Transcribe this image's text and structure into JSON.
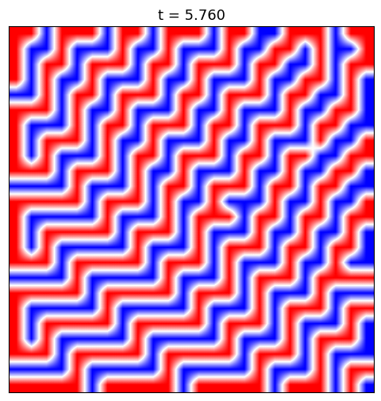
{
  "chart_data": {
    "type": "heatmap",
    "title": "t = 5.760",
    "color": "bwr",
    "tick_labels": false,
    "cells": [
      [
        1,
        1,
        -1,
        1,
        1,
        1,
        -1,
        1,
        1,
        -1,
        1,
        1,
        1,
        -1,
        1,
        1,
        -1,
        -1,
        1,
        1,
        1,
        -1,
        1,
        1
      ],
      [
        1,
        -1,
        -1,
        1,
        -1,
        -1,
        -1,
        1,
        -1,
        -1,
        1,
        -1,
        -1,
        -1,
        1,
        -1,
        -1,
        1,
        1,
        -1,
        1,
        -1,
        -1,
        1
      ],
      [
        1,
        -1,
        1,
        1,
        -1,
        1,
        1,
        1,
        -1,
        1,
        1,
        -1,
        1,
        1,
        1,
        -1,
        1,
        1,
        -1,
        -1,
        1,
        -1,
        1,
        1
      ],
      [
        1,
        -1,
        1,
        -1,
        -1,
        1,
        -1,
        -1,
        -1,
        1,
        -1,
        -1,
        1,
        -1,
        -1,
        -1,
        1,
        -1,
        -1,
        1,
        1,
        -1,
        1,
        -1
      ],
      [
        -1,
        -1,
        1,
        -1,
        1,
        1,
        -1,
        1,
        1,
        1,
        -1,
        1,
        1,
        -1,
        1,
        1,
        1,
        -1,
        1,
        1,
        -1,
        -1,
        1,
        -1
      ],
      [
        1,
        1,
        1,
        -1,
        1,
        -1,
        -1,
        1,
        -1,
        -1,
        -1,
        1,
        -1,
        -1,
        1,
        -1,
        -1,
        -1,
        1,
        -1,
        -1,
        1,
        1,
        -1
      ],
      [
        1,
        -1,
        -1,
        -1,
        1,
        -1,
        1,
        1,
        -1,
        1,
        1,
        1,
        -1,
        1,
        1,
        -1,
        1,
        1,
        1,
        -1,
        1,
        1,
        -1,
        -1
      ],
      [
        1,
        -1,
        1,
        1,
        1,
        -1,
        1,
        -1,
        -1,
        1,
        -1,
        -1,
        -1,
        1,
        -1,
        -1,
        1,
        -1,
        -1,
        -1,
        1,
        -1,
        -1,
        1
      ],
      [
        1,
        -1,
        1,
        -1,
        -1,
        -1,
        1,
        -1,
        1,
        1,
        -1,
        1,
        1,
        1,
        -1,
        1,
        1,
        -1,
        1,
        1,
        -1,
        -1,
        1,
        1
      ],
      [
        1,
        1,
        1,
        -1,
        1,
        1,
        1,
        -1,
        1,
        -1,
        -1,
        1,
        -1,
        -1,
        -1,
        1,
        -1,
        -1,
        1,
        -1,
        -1,
        1,
        1,
        -1
      ],
      [
        -1,
        -1,
        -1,
        -1,
        1,
        -1,
        -1,
        -1,
        1,
        -1,
        1,
        1,
        -1,
        1,
        1,
        1,
        -1,
        1,
        1,
        -1,
        1,
        1,
        -1,
        -1
      ],
      [
        1,
        1,
        1,
        1,
        1,
        -1,
        1,
        1,
        1,
        -1,
        1,
        -1,
        -1,
        1,
        -1,
        -1,
        -1,
        1,
        -1,
        -1,
        1,
        -1,
        -1,
        1
      ],
      [
        1,
        -1,
        -1,
        -1,
        -1,
        -1,
        1,
        -1,
        -1,
        -1,
        1,
        -1,
        1,
        1,
        1,
        -1,
        1,
        1,
        -1,
        1,
        1,
        -1,
        1,
        1
      ],
      [
        1,
        -1,
        1,
        1,
        1,
        1,
        1,
        -1,
        1,
        1,
        1,
        -1,
        1,
        -1,
        -1,
        -1,
        1,
        -1,
        -1,
        1,
        -1,
        -1,
        1,
        -1
      ],
      [
        1,
        -1,
        1,
        -1,
        -1,
        -1,
        -1,
        -1,
        1,
        -1,
        -1,
        -1,
        1,
        -1,
        1,
        1,
        1,
        -1,
        1,
        1,
        -1,
        1,
        1,
        -1
      ],
      [
        1,
        1,
        1,
        -1,
        1,
        1,
        1,
        1,
        1,
        -1,
        1,
        1,
        1,
        -1,
        1,
        -1,
        -1,
        -1,
        1,
        -1,
        -1,
        1,
        -1,
        -1
      ],
      [
        -1,
        -1,
        -1,
        -1,
        1,
        -1,
        -1,
        -1,
        -1,
        -1,
        1,
        -1,
        -1,
        -1,
        1,
        -1,
        1,
        1,
        1,
        -1,
        1,
        1,
        1,
        1
      ],
      [
        1,
        1,
        1,
        1,
        1,
        -1,
        1,
        1,
        1,
        1,
        1,
        -1,
        1,
        1,
        1,
        -1,
        1,
        -1,
        -1,
        -1,
        1,
        -1,
        -1,
        -1
      ],
      [
        1,
        -1,
        -1,
        -1,
        -1,
        -1,
        1,
        -1,
        -1,
        -1,
        -1,
        -1,
        1,
        -1,
        -1,
        -1,
        1,
        -1,
        1,
        1,
        1,
        -1,
        1,
        1
      ],
      [
        1,
        -1,
        1,
        1,
        1,
        1,
        1,
        -1,
        1,
        1,
        1,
        1,
        1,
        -1,
        1,
        1,
        1,
        -1,
        1,
        -1,
        -1,
        -1,
        1,
        -1
      ],
      [
        1,
        -1,
        1,
        -1,
        -1,
        -1,
        -1,
        -1,
        1,
        -1,
        -1,
        -1,
        -1,
        -1,
        1,
        -1,
        -1,
        -1,
        1,
        -1,
        1,
        1,
        1,
        -1
      ],
      [
        1,
        1,
        1,
        -1,
        1,
        1,
        1,
        1,
        1,
        -1,
        1,
        1,
        1,
        1,
        1,
        -1,
        1,
        1,
        1,
        -1,
        1,
        -1,
        -1,
        -1
      ],
      [
        -1,
        -1,
        -1,
        -1,
        1,
        -1,
        -1,
        -1,
        -1,
        -1,
        1,
        -1,
        -1,
        -1,
        -1,
        -1,
        1,
        -1,
        -1,
        -1,
        1,
        -1,
        1,
        1
      ],
      [
        1,
        1,
        1,
        1,
        1,
        -1,
        1,
        1,
        1,
        1,
        1,
        -1,
        1,
        1,
        1,
        1,
        1,
        -1,
        1,
        1,
        1,
        -1,
        1,
        -1
      ]
    ]
  }
}
